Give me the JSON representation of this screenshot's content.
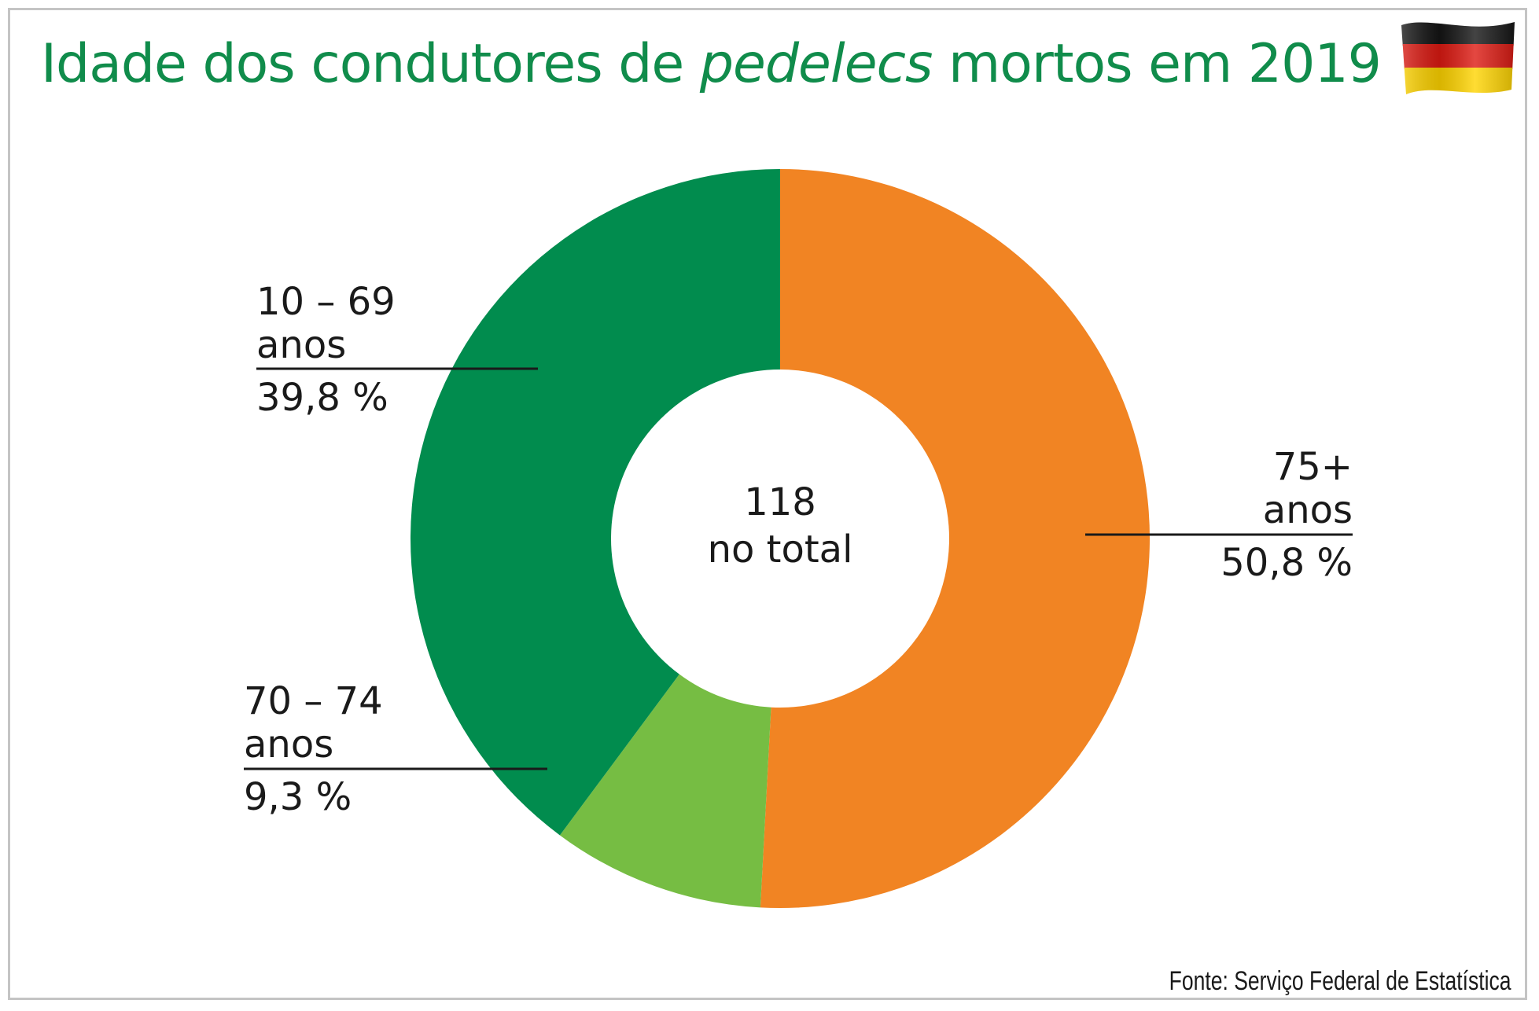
{
  "chart_data": {
    "type": "pie",
    "title": {
      "prefix": "Idade dos condutores de ",
      "italic": "pedelecs",
      "suffix": " mortos em 2019"
    },
    "center": {
      "value": "118",
      "label": "no total"
    },
    "slices": [
      {
        "name_line1": "75+",
        "name_line2": "anos",
        "value": 50.8,
        "value_label": "50,8 %",
        "color": "#f18423"
      },
      {
        "name_line1": "70 – 74",
        "name_line2": "anos",
        "value": 9.3,
        "value_label": "9,3 %",
        "color": "#76bd43"
      },
      {
        "name_line1": "10 – 69",
        "name_line2": "anos",
        "value": 39.8,
        "value_label": "39,8 %",
        "color": "#018c4e"
      }
    ],
    "source": "Fonte: Serviço Federal de Estatística"
  },
  "colors": {
    "title": "#108c4b",
    "text": "#1a1a1a",
    "frame": "#c4c4c4"
  },
  "icons": {
    "flag": "germany-flag-icon"
  }
}
